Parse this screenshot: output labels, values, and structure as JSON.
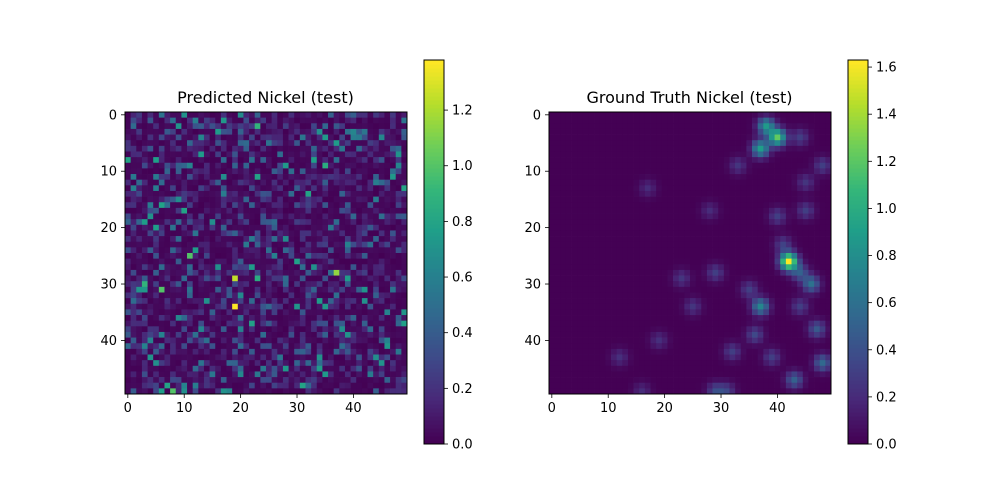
{
  "chart_data": [
    {
      "type": "heatmap",
      "title": "Predicted Nickel (test)",
      "xlabel": "",
      "ylabel": "",
      "grid_size": [
        50,
        50
      ],
      "xlim": [
        -0.5,
        49.5
      ],
      "ylim": [
        49.5,
        -0.5
      ],
      "x_ticks": [
        0,
        10,
        20,
        30,
        40
      ],
      "y_ticks": [
        0,
        10,
        20,
        30,
        40
      ],
      "colormap": "viridis",
      "color_range": [
        0,
        1.38
      ],
      "colorbar_ticks": [
        "0.0",
        "0.2",
        "0.4",
        "0.6",
        "0.8",
        "1.0",
        "1.2"
      ],
      "highlights": [
        {
          "x": 19,
          "y": 34,
          "value": 1.38
        },
        {
          "x": 19,
          "y": 29,
          "value": 1.25
        },
        {
          "x": 37,
          "y": 28,
          "value": 1.15
        },
        {
          "x": 8,
          "y": 49,
          "value": 1.0
        },
        {
          "x": 11,
          "y": 25,
          "value": 1.0
        },
        {
          "x": 6,
          "y": 31,
          "value": 1.0
        },
        {
          "x": 23,
          "y": 2,
          "value": 0.9
        },
        {
          "x": 3,
          "y": 30,
          "value": 0.9
        },
        {
          "x": 23,
          "y": 29,
          "value": 0.85
        },
        {
          "x": 35,
          "y": 9,
          "value": 0.85
        },
        {
          "x": 49,
          "y": 13,
          "value": 0.8
        },
        {
          "x": 7,
          "y": 48,
          "value": 0.8
        },
        {
          "x": 13,
          "y": 7,
          "value": 0.75
        },
        {
          "x": 39,
          "y": 39,
          "value": 0.7
        },
        {
          "x": 17,
          "y": 49,
          "value": 0.7
        },
        {
          "x": 4,
          "y": 18,
          "value": 0.7
        },
        {
          "x": 14,
          "y": 33,
          "value": 0.7
        }
      ]
    },
    {
      "type": "heatmap",
      "title": "Ground Truth Nickel (test)",
      "xlabel": "",
      "ylabel": "",
      "grid_size": [
        50,
        50
      ],
      "xlim": [
        -0.5,
        49.5
      ],
      "ylim": [
        49.5,
        -0.5
      ],
      "x_ticks": [
        0,
        10,
        20,
        30,
        40
      ],
      "y_ticks": [
        0,
        10,
        20,
        30,
        40
      ],
      "colormap": "viridis",
      "color_range": [
        0,
        1.63
      ],
      "colorbar_ticks": [
        "0.0",
        "0.2",
        "0.4",
        "0.6",
        "0.8",
        "1.0",
        "1.2",
        "1.4",
        "1.6"
      ],
      "hotspots": [
        {
          "x": 42,
          "y": 26,
          "value": 1.63
        },
        {
          "x": 40,
          "y": 4,
          "value": 1.2
        },
        {
          "x": 38,
          "y": 2,
          "value": 0.85
        },
        {
          "x": 37,
          "y": 6,
          "value": 0.9
        },
        {
          "x": 37,
          "y": 34,
          "value": 0.75
        },
        {
          "x": 46,
          "y": 30,
          "value": 0.6
        },
        {
          "x": 48,
          "y": 44,
          "value": 0.55
        },
        {
          "x": 43,
          "y": 47,
          "value": 0.5
        },
        {
          "x": 44,
          "y": 28,
          "value": 0.45
        },
        {
          "x": 47,
          "y": 38,
          "value": 0.45
        },
        {
          "x": 36,
          "y": 39,
          "value": 0.35
        },
        {
          "x": 32,
          "y": 42,
          "value": 0.3
        },
        {
          "x": 44,
          "y": 34,
          "value": 0.3
        },
        {
          "x": 39,
          "y": 43,
          "value": 0.3
        },
        {
          "x": 29,
          "y": 49,
          "value": 0.35
        },
        {
          "x": 35,
          "y": 31,
          "value": 0.3
        },
        {
          "x": 41,
          "y": 23,
          "value": 0.3
        },
        {
          "x": 40,
          "y": 18,
          "value": 0.3
        },
        {
          "x": 45,
          "y": 17,
          "value": 0.3
        },
        {
          "x": 48,
          "y": 9,
          "value": 0.3
        },
        {
          "x": 45,
          "y": 12,
          "value": 0.25
        },
        {
          "x": 33,
          "y": 9,
          "value": 0.25
        },
        {
          "x": 29,
          "y": 28,
          "value": 0.3
        },
        {
          "x": 31,
          "y": 49,
          "value": 0.3
        },
        {
          "x": 25,
          "y": 34,
          "value": 0.25
        },
        {
          "x": 23,
          "y": 29,
          "value": 0.25
        },
        {
          "x": 19,
          "y": 40,
          "value": 0.22
        },
        {
          "x": 12,
          "y": 43,
          "value": 0.22
        },
        {
          "x": 16,
          "y": 49,
          "value": 0.2
        },
        {
          "x": 17,
          "y": 13,
          "value": 0.2
        },
        {
          "x": 28,
          "y": 17,
          "value": 0.2
        },
        {
          "x": 44,
          "y": 4,
          "value": 0.3
        }
      ]
    }
  ]
}
